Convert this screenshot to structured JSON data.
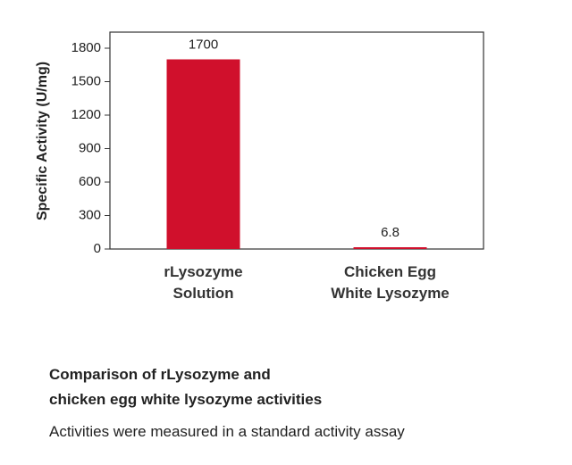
{
  "chart_data": {
    "type": "bar",
    "title": "Comparison of rLysozyme and\nchicken egg white lysozyme activities",
    "subtitle": "Activities were measured in a standard activity assay",
    "y_label": "Specific Activity (U/mg)",
    "categories": [
      "rLysozyme\nSolution",
      "Chicken Egg\nWhite Lysozyme"
    ],
    "values": [
      1700,
      6.8
    ],
    "color": "#d0102c",
    "ylim": [
      0,
      1944
    ],
    "yticks": [
      0,
      300,
      600,
      900,
      1200,
      1500,
      1800
    ]
  }
}
